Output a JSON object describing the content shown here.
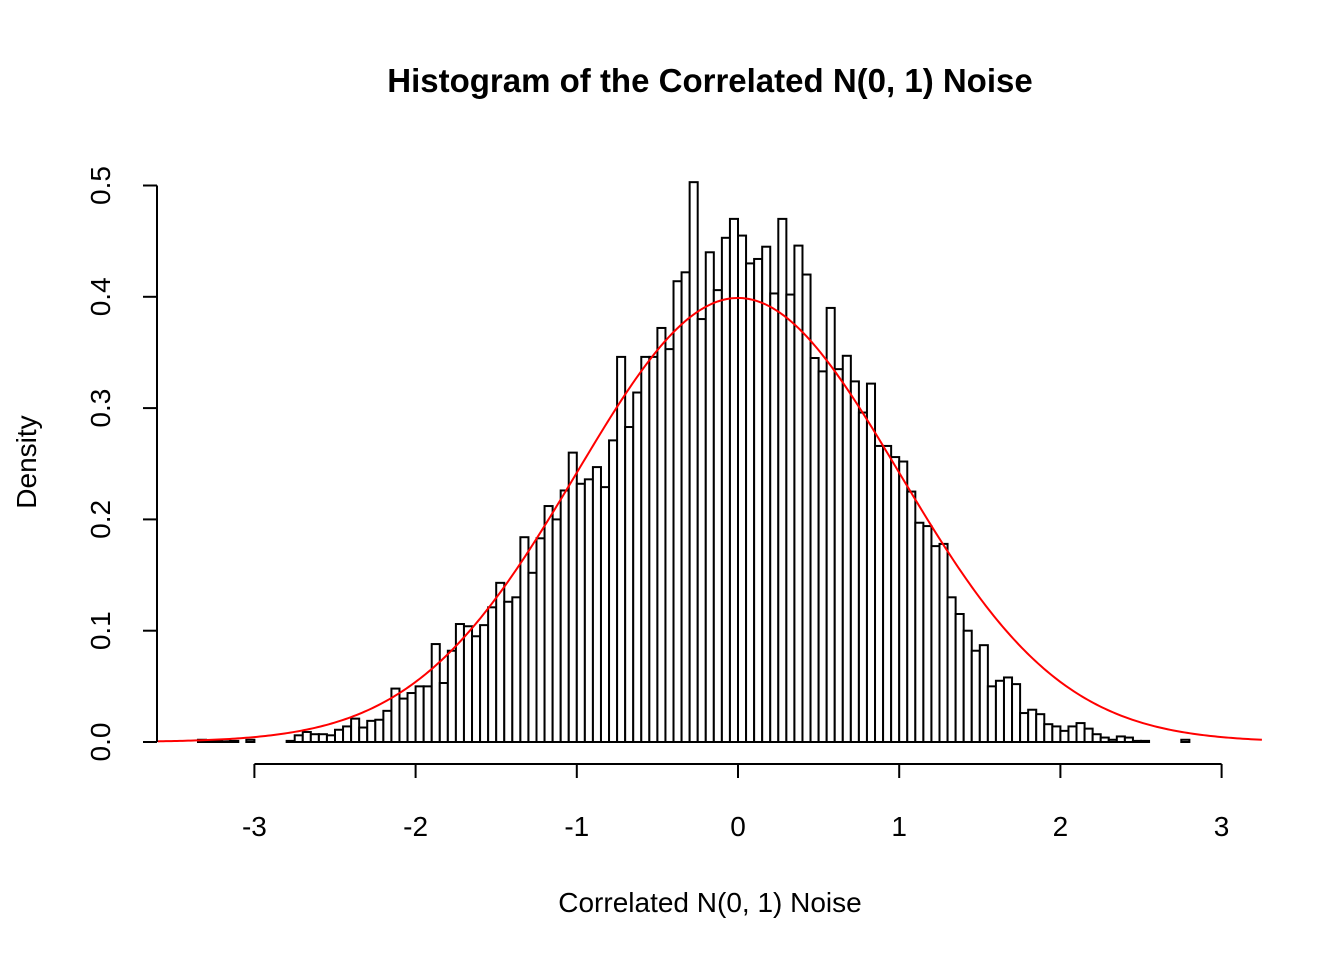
{
  "chart_data": {
    "type": "bar",
    "title": "Histogram of the Correlated N(0, 1) Noise",
    "xlabel": "Correlated N(0, 1) Noise",
    "ylabel": "Density",
    "xlim": [
      -3.6,
      3.25
    ],
    "ylim": [
      0,
      0.5
    ],
    "x_ticks": [
      "-3",
      "-2",
      "-1",
      "0",
      "1",
      "2",
      "3"
    ],
    "y_ticks": [
      "0.0",
      "0.1",
      "0.2",
      "0.3",
      "0.4",
      "0.5"
    ],
    "bin_start": -3.35,
    "bin_width": 0.05,
    "values": [
      0.002,
      0.001,
      0.001,
      0.002,
      0.001,
      0.0,
      0.002,
      0.0,
      0.0,
      0.0,
      0.0,
      0.001,
      0.006,
      0.009,
      0.007,
      0.007,
      0.006,
      0.011,
      0.014,
      0.021,
      0.013,
      0.019,
      0.02,
      0.028,
      0.048,
      0.039,
      0.044,
      0.05,
      0.05,
      0.088,
      0.053,
      0.082,
      0.106,
      0.104,
      0.095,
      0.105,
      0.121,
      0.143,
      0.126,
      0.13,
      0.184,
      0.152,
      0.183,
      0.212,
      0.2,
      0.226,
      0.26,
      0.232,
      0.236,
      0.247,
      0.229,
      0.271,
      0.346,
      0.283,
      0.314,
      0.346,
      0.346,
      0.372,
      0.353,
      0.414,
      0.422,
      0.503,
      0.38,
      0.44,
      0.406,
      0.453,
      0.47,
      0.455,
      0.43,
      0.434,
      0.445,
      0.403,
      0.47,
      0.402,
      0.446,
      0.42,
      0.345,
      0.333,
      0.39,
      0.335,
      0.347,
      0.324,
      0.296,
      0.322,
      0.266,
      0.266,
      0.256,
      0.252,
      0.225,
      0.197,
      0.194,
      0.176,
      0.178,
      0.13,
      0.115,
      0.1,
      0.082,
      0.087,
      0.05,
      0.055,
      0.058,
      0.052,
      0.026,
      0.029,
      0.025,
      0.016,
      0.014,
      0.01,
      0.014,
      0.017,
      0.012,
      0.007,
      0.004,
      0.002,
      0.005,
      0.004,
      0.001,
      0.001,
      0.0,
      0.0,
      0.0,
      0.0,
      0.002
    ],
    "series": [
      {
        "kind": "histogram",
        "fill": "#ffffff",
        "stroke": "#000000"
      },
      {
        "kind": "density-curve",
        "distribution": "normal",
        "mean": 0,
        "sd": 1,
        "color": "#ff0000"
      }
    ],
    "grid": false,
    "legend": "none"
  }
}
